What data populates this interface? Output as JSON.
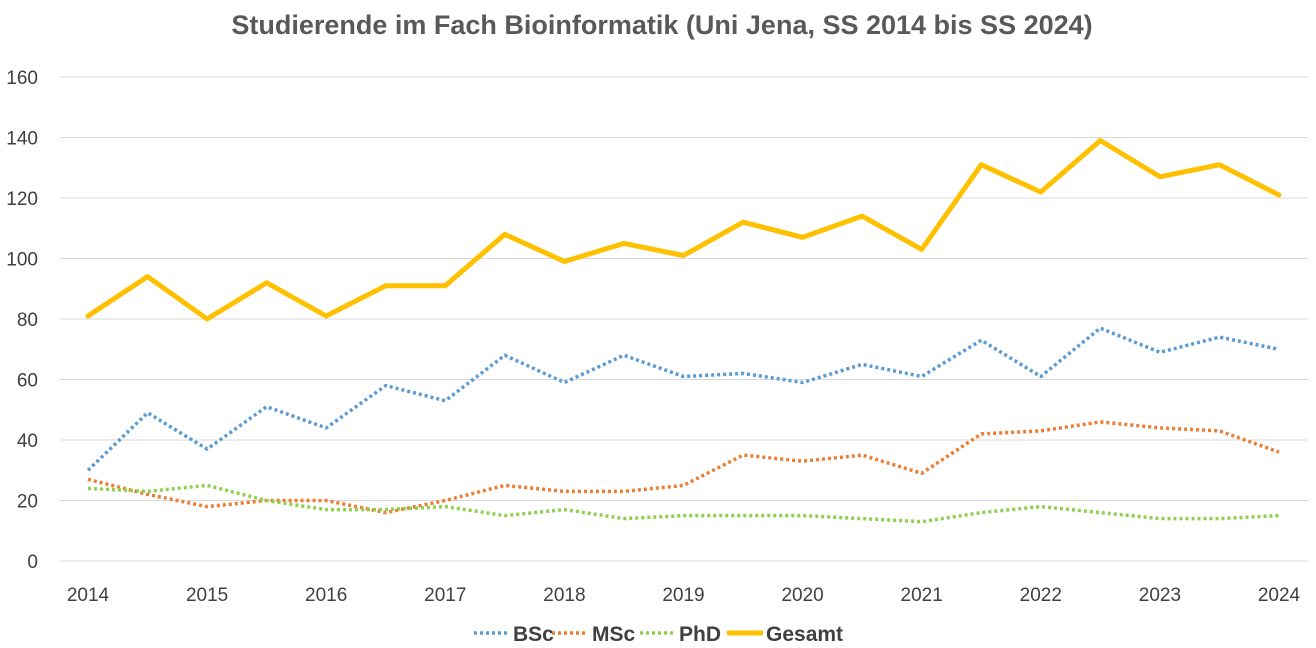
{
  "chart_data": {
    "type": "line",
    "title": "Studierende im Fach Bioinformatik (Uni Jena, SS 2014 bis SS 2024)",
    "xlabel": "",
    "ylabel": "",
    "ylim": [
      0,
      160
    ],
    "yticks": [
      "0",
      "20",
      "40",
      "60",
      "80",
      "100",
      "120",
      "140",
      "160"
    ],
    "x": [
      2014,
      2014.5,
      2015,
      2015.5,
      2016,
      2016.5,
      2017,
      2017.5,
      2018,
      2018.5,
      2019,
      2019.5,
      2020,
      2020.5,
      2021,
      2021.5,
      2022,
      2022.5,
      2023,
      2023.5,
      2024
    ],
    "xtick_labels": [
      "2014",
      "2015",
      "2016",
      "2017",
      "2018",
      "2019",
      "2020",
      "2021",
      "2022",
      "2023",
      "2024"
    ],
    "grid": "horizontal",
    "legend_position": "bottom",
    "series": [
      {
        "name": "BSc",
        "color": "#5b9bd5",
        "style": "dotted",
        "values": [
          30,
          49,
          37,
          51,
          44,
          58,
          53,
          68,
          59,
          68,
          61,
          62,
          59,
          65,
          61,
          73,
          61,
          77,
          69,
          74,
          70
        ]
      },
      {
        "name": "MSc",
        "color": "#ed7d31",
        "style": "dotted",
        "values": [
          27,
          22,
          18,
          20,
          20,
          16,
          20,
          25,
          23,
          23,
          25,
          35,
          33,
          35,
          29,
          42,
          43,
          46,
          44,
          43,
          36
        ]
      },
      {
        "name": "PhD",
        "color": "#8fd14f",
        "style": "dotted",
        "values": [
          24,
          23,
          25,
          20,
          17,
          17,
          18,
          15,
          17,
          14,
          15,
          15,
          15,
          14,
          13,
          16,
          18,
          16,
          14,
          14,
          15
        ]
      },
      {
        "name": "Gesamt",
        "color": "#ffc000",
        "style": "solid",
        "values": [
          81,
          94,
          80,
          92,
          81,
          91,
          91,
          108,
          99,
          105,
          101,
          112,
          107,
          114,
          103,
          131,
          122,
          139,
          127,
          131,
          121
        ]
      }
    ]
  }
}
